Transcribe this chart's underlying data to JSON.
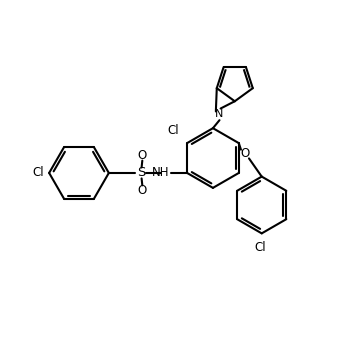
{
  "bg_color": "#ffffff",
  "line_color": "#000000",
  "lw": 1.5,
  "figsize": [
    3.64,
    3.51
  ],
  "dpi": 100,
  "xlim": [
    0,
    10
  ],
  "ylim": [
    0,
    9.64
  ]
}
